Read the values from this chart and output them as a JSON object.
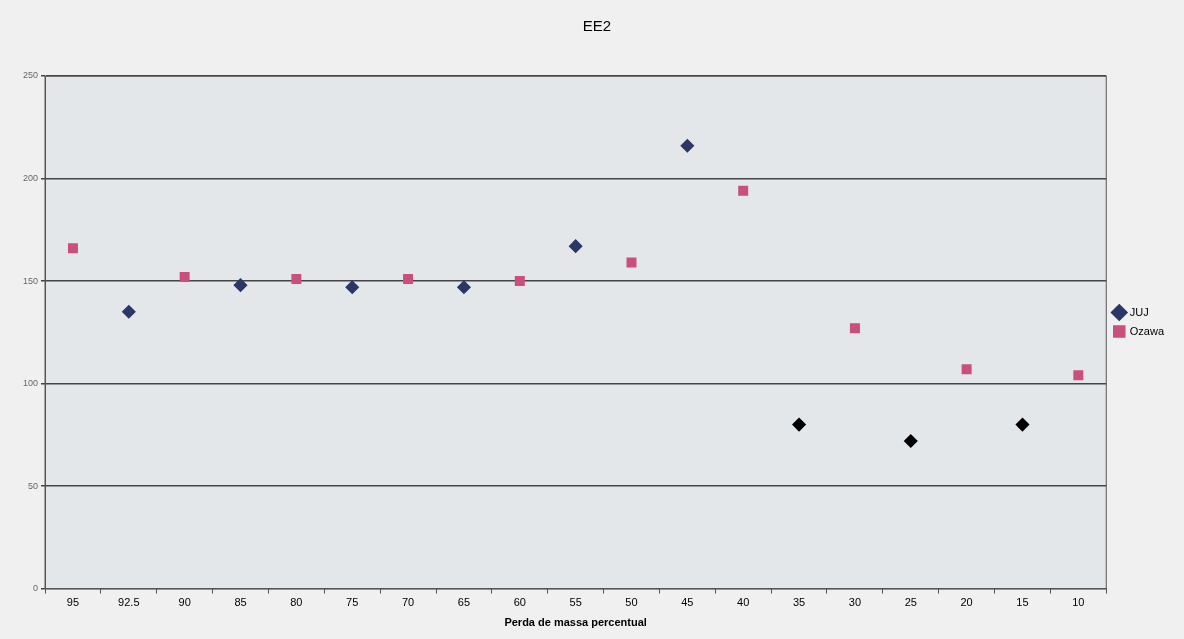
{
  "chart_data": {
    "type": "scatter",
    "title": "EE2",
    "xlabel": "Perda de massa percentual",
    "categories": [
      "95",
      "92.5",
      "90",
      "85",
      "80",
      "75",
      "70",
      "65",
      "60",
      "55",
      "50",
      "45",
      "40",
      "35",
      "30",
      "25",
      "20",
      "15",
      "10"
    ],
    "series": [
      {
        "name": "JUJ",
        "color": "#2b3766",
        "marker": "diamond",
        "values": [
          null,
          135,
          null,
          148,
          null,
          147,
          null,
          147,
          null,
          167,
          null,
          216,
          null,
          80,
          null,
          72,
          null,
          80,
          null
        ],
        "colors": [
          null,
          "#2b3766",
          null,
          "#2b3766",
          null,
          "#2b3766",
          null,
          "#2b3766",
          null,
          "#2b3766",
          null,
          "#2b3766",
          null,
          "#000000",
          null,
          "#000000",
          null,
          "#000000",
          null
        ]
      },
      {
        "name": "Ozawa",
        "color": "#c8507a",
        "marker": "square",
        "values": [
          166,
          null,
          152,
          null,
          151,
          null,
          151,
          null,
          150,
          null,
          159,
          null,
          194,
          null,
          127,
          null,
          107,
          null,
          104
        ]
      }
    ],
    "ylim": [
      0,
      250
    ],
    "yticks": [
      0,
      50,
      100,
      150,
      200,
      250
    ],
    "grid": "y",
    "legend": "right"
  }
}
